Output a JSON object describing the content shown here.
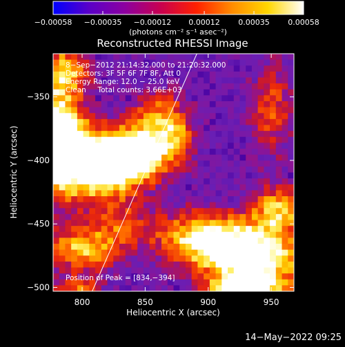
{
  "chart_data": {
    "type": "heatmap",
    "title": "Reconstructed RHESSI Image",
    "xlabel": "Heliocentric X (arcsec)",
    "ylabel": "Heliocentric Y (arcsec)",
    "xlim": [
      777,
      968
    ],
    "ylim": [
      -503,
      -316
    ],
    "x_ticks": [
      800,
      850,
      900,
      950
    ],
    "y_ticks": [
      -350,
      -400,
      -450,
      -500
    ],
    "x_tick_labels": [
      "800",
      "850",
      "900",
      "950"
    ],
    "y_tick_labels": [
      "−350",
      "−400",
      "−450",
      "−500"
    ],
    "colorbar": {
      "range": [
        -0.00058,
        0.00058
      ],
      "tick_labels": [
        "−0.00058",
        "−0.00035",
        "−0.00012",
        "0.00012",
        "0.00035",
        "0.00058"
      ],
      "unit_label": "(photons cm⁻² s⁻¹ asec⁻²)",
      "colors": [
        "#0000ff",
        "#5a00c8",
        "#8c00a0",
        "#c80050",
        "#ff2000",
        "#ff8c00",
        "#ffd700",
        "#ffffff"
      ]
    },
    "limb_line": {
      "from": [
        808,
        -503
      ],
      "to": [
        891,
        -316
      ]
    },
    "annotations": [
      "8−Sep−2012 21:14:32.000 to 21:20:32.000",
      "Detectors: 3F 5F 6F 7F 8F, Att 0",
      "Energy Range: 12.0 − 25.0 keV",
      "Clean     Total counts: 3.66E+03"
    ],
    "peak_label": "Position of Peak = [834,−394]",
    "peak_position": [
      834,
      -394
    ]
  },
  "footer": {
    "timestamp": "14−May−2022 09:25"
  }
}
